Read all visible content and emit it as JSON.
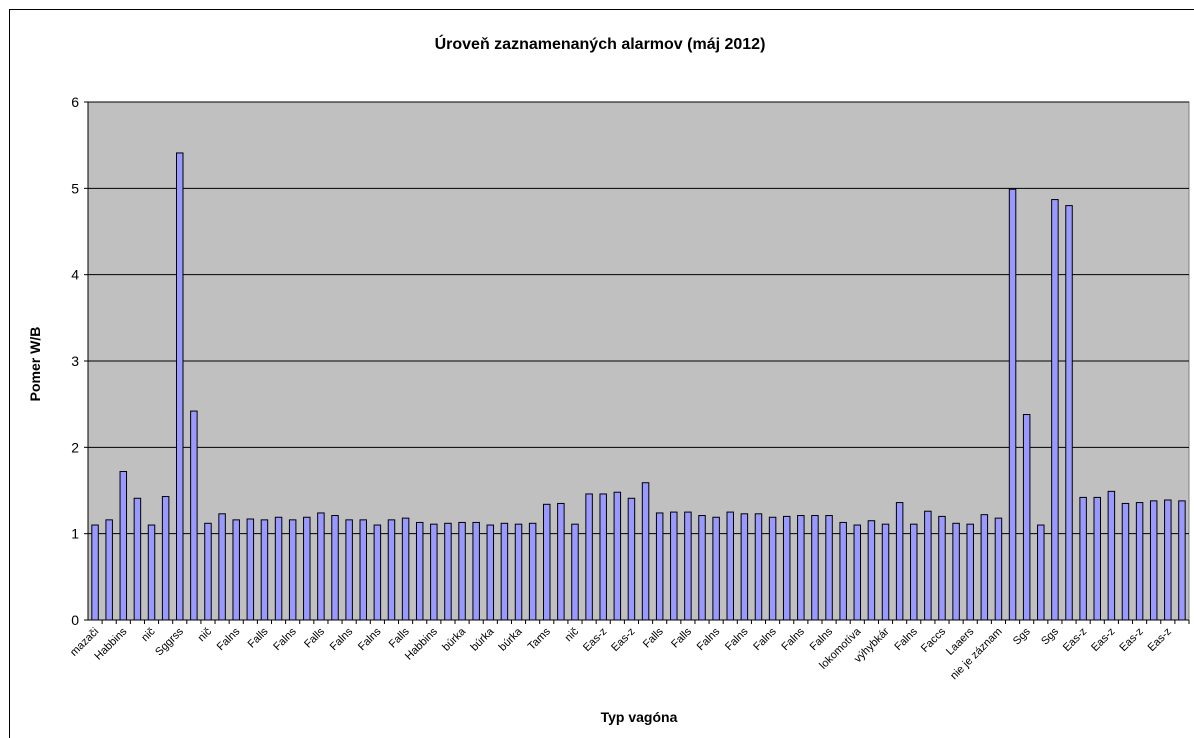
{
  "chart_data": {
    "type": "bar",
    "title": "Úroveň zaznamenaných alarmov (máj 2012)",
    "xlabel": "Typ vagóna",
    "ylabel": "Pomer W/B",
    "ylim": [
      0,
      6
    ],
    "yticks": [
      0,
      1,
      2,
      3,
      4,
      5,
      6
    ],
    "grid": true,
    "legend": "none",
    "colors": {
      "bar_fill": "#9999ff",
      "bar_stroke": "#000000",
      "plot_bg": "#c0c0c0",
      "grid": "#000000"
    },
    "categories": [
      "mazači",
      "",
      "Habbins",
      "",
      "nič",
      "",
      "Sggrss",
      "",
      "nič",
      "",
      "Falns",
      "",
      "Falls",
      "",
      "Falns",
      "",
      "Falls",
      "",
      "Falns",
      "",
      "Falns",
      "",
      "Falls",
      "",
      "Habbins",
      "",
      "búrka",
      "",
      "búrka",
      "",
      "búrka",
      "",
      "Tams",
      "",
      "nič",
      "",
      "Eas-z",
      "",
      "Eas-z",
      "",
      "Falls",
      "",
      "Falls",
      "",
      "Falns",
      "",
      "Falns",
      "",
      "Falns",
      "",
      "Falns",
      "",
      "Falns",
      "",
      "lokomotíva",
      "",
      "výhybkár",
      "",
      "Falns",
      "",
      "Faccs",
      "",
      "Laaers",
      "",
      "nie je záznam",
      "",
      "Sgs",
      "",
      "Sgs",
      "",
      "Eas-z",
      "",
      "Eas-z",
      "",
      "Eas-z",
      "",
      "Eas-z",
      ""
    ],
    "values": [
      1.1,
      1.16,
      1.72,
      1.41,
      1.1,
      1.43,
      5.41,
      2.42,
      1.12,
      1.23,
      1.16,
      1.17,
      1.16,
      1.19,
      1.16,
      1.19,
      1.24,
      1.21,
      1.16,
      1.16,
      1.1,
      1.16,
      1.18,
      1.13,
      1.11,
      1.12,
      1.13,
      1.13,
      1.1,
      1.12,
      1.11,
      1.12,
      1.34,
      1.35,
      1.11,
      1.46,
      1.46,
      1.48,
      1.41,
      1.59,
      1.24,
      1.25,
      1.25,
      1.21,
      1.19,
      1.25,
      1.23,
      1.23,
      1.19,
      1.2,
      1.21,
      1.21,
      1.21,
      1.13,
      1.1,
      1.15,
      1.11,
      1.36,
      1.11,
      1.26,
      1.2,
      1.12,
      1.11,
      1.22,
      1.18,
      4.99,
      2.38,
      1.1,
      4.87,
      4.8,
      1.42,
      1.42,
      1.49,
      1.35,
      1.36,
      1.38,
      1.39,
      1.38
    ]
  }
}
